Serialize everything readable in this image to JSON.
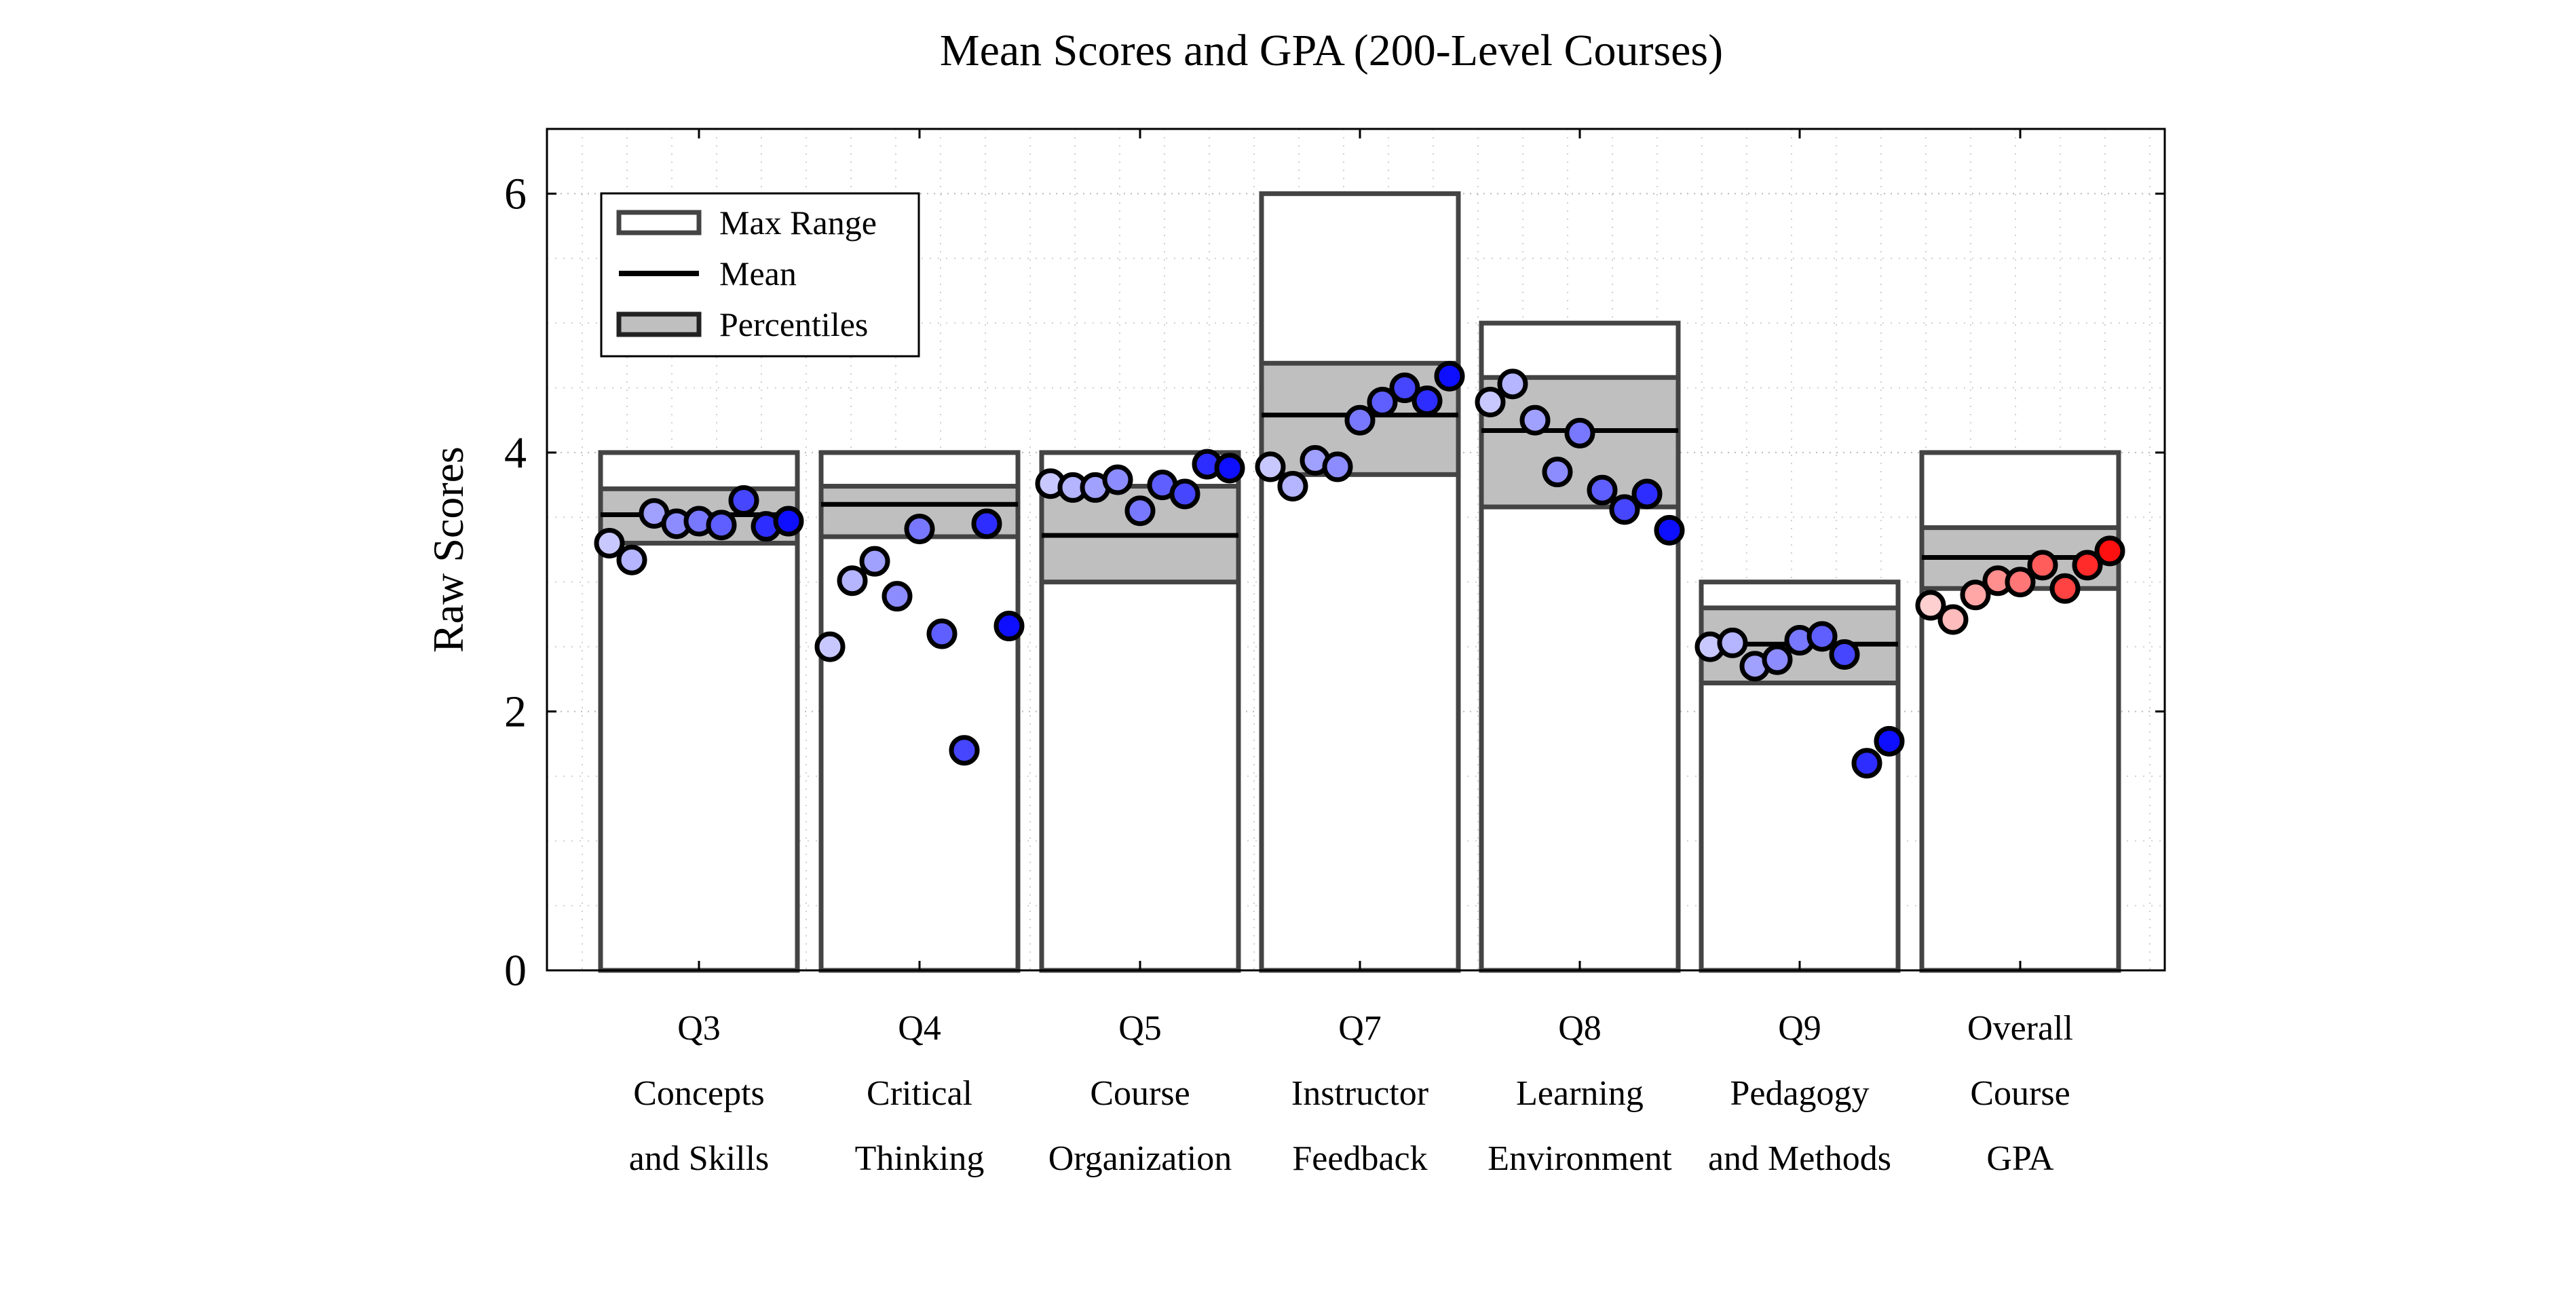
{
  "chart_data": {
    "type": "bar",
    "title": "Mean Scores and GPA (200-Level Courses)",
    "xlabel": "",
    "ylabel": "Raw Scores",
    "ylim": [
      0,
      6.5
    ],
    "yticks": [
      "0",
      "2",
      "4",
      "6"
    ],
    "grid": true,
    "legend": {
      "placement": "top-left",
      "entries": [
        "Max Range",
        "Mean",
        "Percentiles"
      ]
    },
    "categories": [
      {
        "lines": [
          "Q3",
          "Concepts",
          "and Skills"
        ],
        "max": 4,
        "mean": 3.52,
        "p_low": 3.3,
        "p_high": 3.72,
        "points": [
          3.3,
          3.17,
          3.53,
          3.45,
          3.47,
          3.44,
          3.63,
          3.43,
          3.47
        ]
      },
      {
        "lines": [
          "Q4",
          "Critical",
          "Thinking"
        ],
        "max": 4,
        "mean": 3.6,
        "p_low": 3.35,
        "p_high": 3.74,
        "points": [
          2.5,
          3.01,
          3.16,
          2.89,
          3.41,
          2.6,
          1.7,
          3.45,
          2.66
        ]
      },
      {
        "lines": [
          "Q5",
          "Course",
          "Organization"
        ],
        "max": 4,
        "mean": 3.36,
        "p_low": 3.0,
        "p_high": 3.74,
        "points": [
          3.76,
          3.73,
          3.73,
          3.79,
          3.55,
          3.75,
          3.68,
          3.91,
          3.88
        ]
      },
      {
        "lines": [
          "Q7",
          "Instructor",
          "Feedback"
        ],
        "max": 6,
        "mean": 4.29,
        "p_low": 3.83,
        "p_high": 4.69,
        "points": [
          3.89,
          3.74,
          3.94,
          3.89,
          4.25,
          4.39,
          4.5,
          4.4,
          4.59
        ]
      },
      {
        "lines": [
          "Q8",
          "Learning",
          "Environment"
        ],
        "max": 5,
        "mean": 4.17,
        "p_low": 3.58,
        "p_high": 4.58,
        "points": [
          4.39,
          4.53,
          4.25,
          3.85,
          4.15,
          3.71,
          3.56,
          3.68,
          3.4
        ]
      },
      {
        "lines": [
          "Q9",
          "Pedagogy",
          "and Methods"
        ],
        "max": 3,
        "mean": 2.52,
        "p_low": 2.22,
        "p_high": 2.8,
        "points": [
          2.5,
          2.53,
          2.35,
          2.4,
          2.55,
          2.58,
          2.44,
          1.6,
          1.77
        ]
      },
      {
        "lines": [
          "Overall",
          "Course",
          "GPA"
        ],
        "max": 4,
        "mean": 3.19,
        "p_low": 2.95,
        "p_high": 3.42,
        "points": [
          2.82,
          2.71,
          2.9,
          3.01,
          3.0,
          3.13,
          2.95,
          3.13,
          3.24
        ]
      }
    ],
    "colors": {
      "range_stroke": "#444444",
      "percentile_fill": "#bfbfbf",
      "mean_line": "#000000",
      "q_point_scale": [
        "#c8c8ff",
        "#b4b4ff",
        "#a0a0ff",
        "#8c8cff",
        "#7878ff",
        "#5f5fff",
        "#4646ff",
        "#2d2dff",
        "#0f0fff"
      ],
      "gpa_point_scale": [
        "#ffd0d0",
        "#ffbcbc",
        "#ffa6a6",
        "#ff8e8e",
        "#ff7676",
        "#ff5c5c",
        "#ff4242",
        "#ff2a2a",
        "#ff1010"
      ]
    }
  }
}
